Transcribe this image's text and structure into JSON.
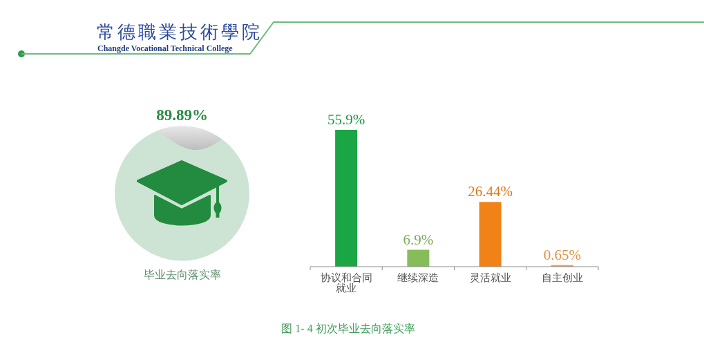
{
  "chart_data": [
    {
      "type": "other",
      "title": "常德職業技術學院",
      "subtitle": "Changde Vocational Technical College"
    },
    {
      "type": "other",
      "title": "89.89%",
      "subtitle": "毕业去向落实率"
    },
    {
      "type": "bar",
      "categories": [
        "协议和合同就业",
        "继续深造",
        "灵活就业",
        "自主创业"
      ],
      "values": [
        55.9,
        6.9,
        26.44,
        0.65
      ],
      "value_labels": [
        "55.9%",
        "6.9%",
        "26.44%",
        "0.65%"
      ],
      "colors": [
        "#1aa645",
        "#86bd5b",
        "#f08218",
        "#f0a24e"
      ],
      "annotations": [
        "图 1- 4  初次毕业去向落实率"
      ]
    }
  ]
}
